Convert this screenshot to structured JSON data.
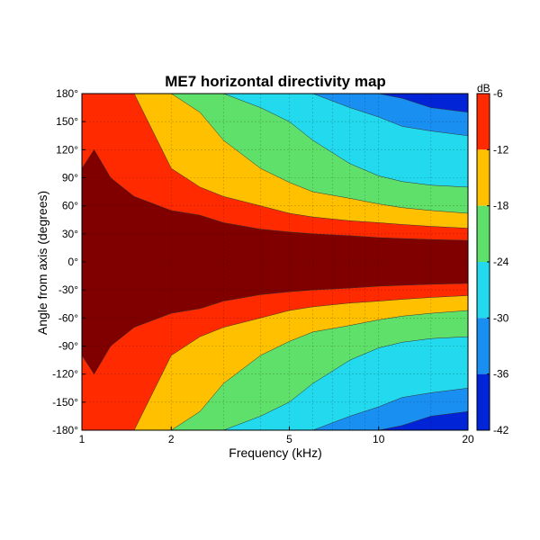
{
  "chart_data": {
    "type": "heatmap",
    "title": "ME7 horizontal directivity map",
    "xlabel": "Frequency (kHz)",
    "ylabel": "Angle from axis (degrees)",
    "x_scale": "log",
    "xlim": [
      1,
      20
    ],
    "x_ticks": [
      {
        "value": 1,
        "label": "1"
      },
      {
        "value": 2,
        "label": "2"
      },
      {
        "value": 5,
        "label": "5"
      },
      {
        "value": 10,
        "label": "10"
      },
      {
        "value": 20,
        "label": "20"
      }
    ],
    "ylim": [
      -180,
      180
    ],
    "y_ticks": [
      {
        "value": 180,
        "label": "180°"
      },
      {
        "value": 150,
        "label": "150°"
      },
      {
        "value": 120,
        "label": "120°"
      },
      {
        "value": 90,
        "label": "90°"
      },
      {
        "value": 60,
        "label": "60°"
      },
      {
        "value": 30,
        "label": "30°"
      },
      {
        "value": 0,
        "label": "0°"
      },
      {
        "value": -30,
        "label": "-30°"
      },
      {
        "value": -60,
        "label": "-60°"
      },
      {
        "value": -90,
        "label": "-90°"
      },
      {
        "value": -120,
        "label": "-120°"
      },
      {
        "value": -150,
        "label": "-150°"
      },
      {
        "value": -180,
        "label": "-180°"
      }
    ],
    "grid": true,
    "colorbar": {
      "unit": "dB",
      "range": [
        -42,
        -6
      ],
      "ticks": [
        {
          "value": -6,
          "label": "-6"
        },
        {
          "value": -12,
          "label": "-12"
        },
        {
          "value": -18,
          "label": "-18"
        },
        {
          "value": -24,
          "label": "-24"
        },
        {
          "value": -30,
          "label": "-30"
        },
        {
          "value": -36,
          "label": "-36"
        },
        {
          "value": -42,
          "label": "-42"
        }
      ],
      "levels": [
        {
          "min": -6,
          "max": -3,
          "color": "#800000"
        },
        {
          "min": -12,
          "max": -6,
          "color": "#ff2a00"
        },
        {
          "min": -18,
          "max": -12,
          "color": "#ffc000"
        },
        {
          "min": -24,
          "max": -18,
          "color": "#5fe06a"
        },
        {
          "min": -30,
          "max": -24,
          "color": "#22d9ee"
        },
        {
          "min": -36,
          "max": -30,
          "color": "#1a8ff2"
        },
        {
          "min": -42,
          "max": -36,
          "color": "#0024d6"
        }
      ]
    },
    "contour_boundaries": {
      "frequencies_khz": [
        1,
        1.1,
        1.25,
        1.5,
        2,
        2.5,
        3,
        4,
        5,
        6,
        8,
        10,
        12,
        15,
        20
      ],
      "angle_-6dB": [
        100,
        120,
        90,
        70,
        55,
        50,
        42,
        35,
        32,
        30,
        28,
        26,
        25,
        24,
        23
      ],
      "angle_-12dB": [
        180,
        180,
        180,
        180,
        100,
        80,
        70,
        60,
        52,
        48,
        44,
        42,
        40,
        38,
        36
      ],
      "angle_-18dB": [
        null,
        null,
        null,
        null,
        null,
        160,
        130,
        100,
        85,
        75,
        68,
        62,
        58,
        55,
        52
      ],
      "angle_-24dB": [
        null,
        null,
        null,
        null,
        null,
        null,
        null,
        165,
        150,
        130,
        105,
        92,
        86,
        82,
        80
      ],
      "angle_-30dB": [
        null,
        null,
        null,
        null,
        null,
        null,
        null,
        null,
        null,
        null,
        165,
        155,
        145,
        140,
        135
      ],
      "angle_-36dB": [
        null,
        null,
        null,
        null,
        null,
        null,
        null,
        null,
        null,
        null,
        null,
        null,
        175,
        165,
        160
      ]
    }
  }
}
